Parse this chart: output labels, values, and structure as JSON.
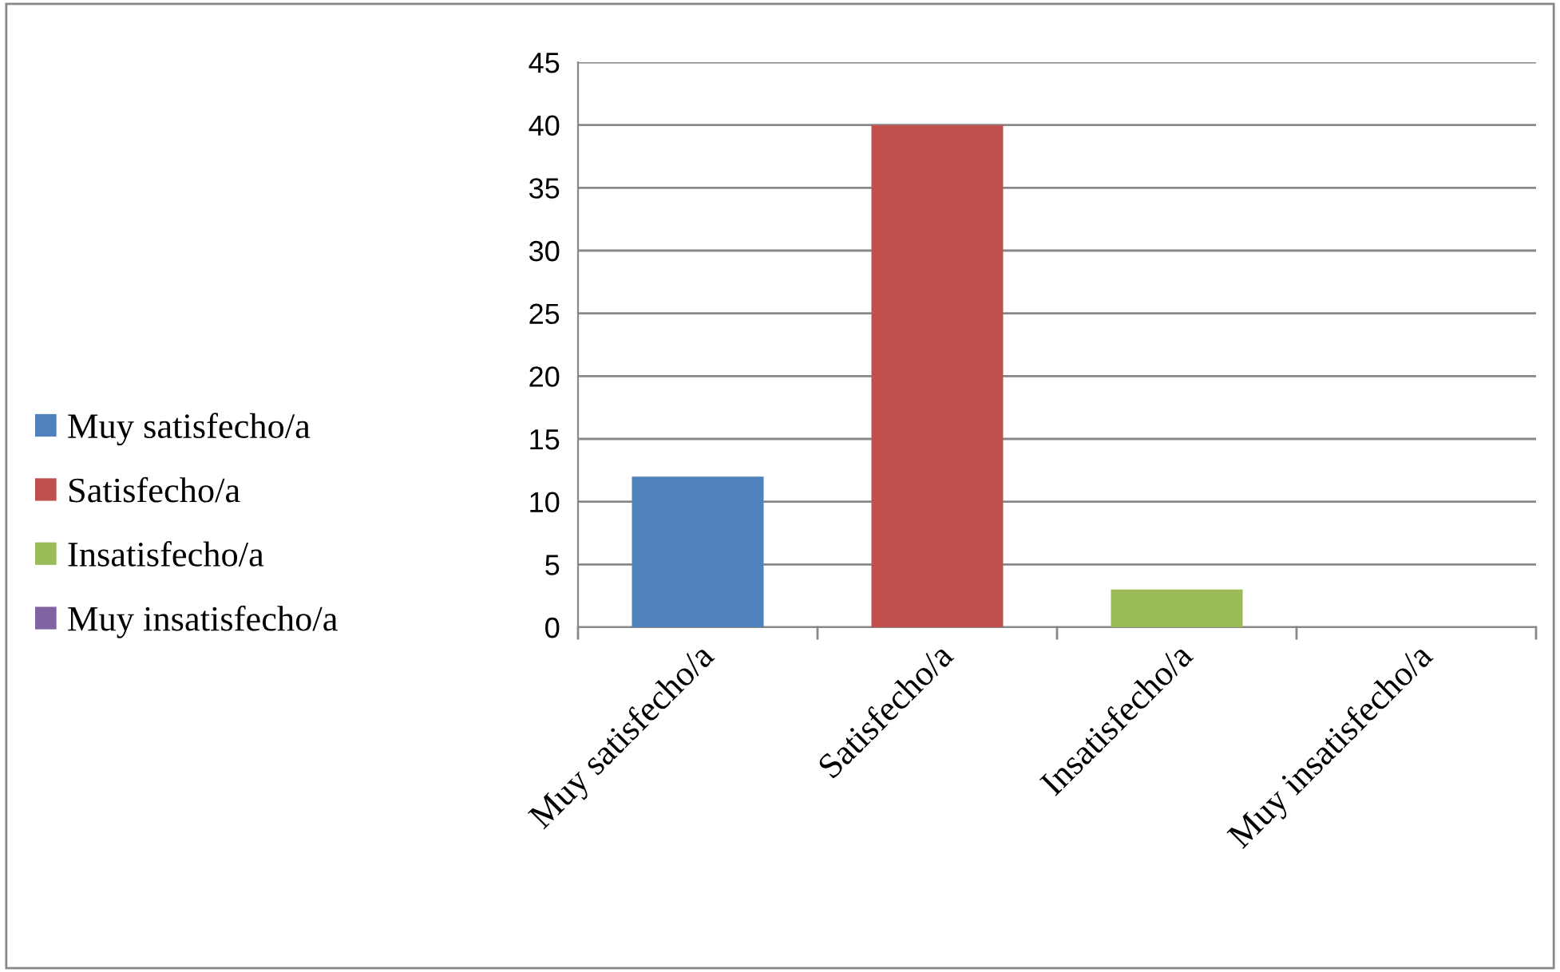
{
  "chart_data": {
    "type": "bar",
    "categories": [
      "Muy satisfecho/a",
      "Satisfecho/a",
      "Insatisfecho/a",
      "Muy insatisfecho/a"
    ],
    "series": [
      {
        "name": "Muy satisfecho/a",
        "color": "#4f81bd",
        "values": [
          12,
          null,
          null,
          null
        ]
      },
      {
        "name": "Satisfecho/a",
        "color": "#c0504d",
        "values": [
          null,
          40,
          null,
          null
        ]
      },
      {
        "name": "Insatisfecho/a",
        "color": "#9bbb59",
        "values": [
          null,
          null,
          3,
          null
        ]
      },
      {
        "name": "Muy insatisfecho/a",
        "color": "#8064a2",
        "values": [
          null,
          null,
          null,
          0
        ]
      }
    ],
    "ylim": [
      0,
      45
    ],
    "yticks": [
      0,
      5,
      10,
      15,
      20,
      25,
      30,
      35,
      40,
      45
    ],
    "grid": "y",
    "legend": "left"
  }
}
